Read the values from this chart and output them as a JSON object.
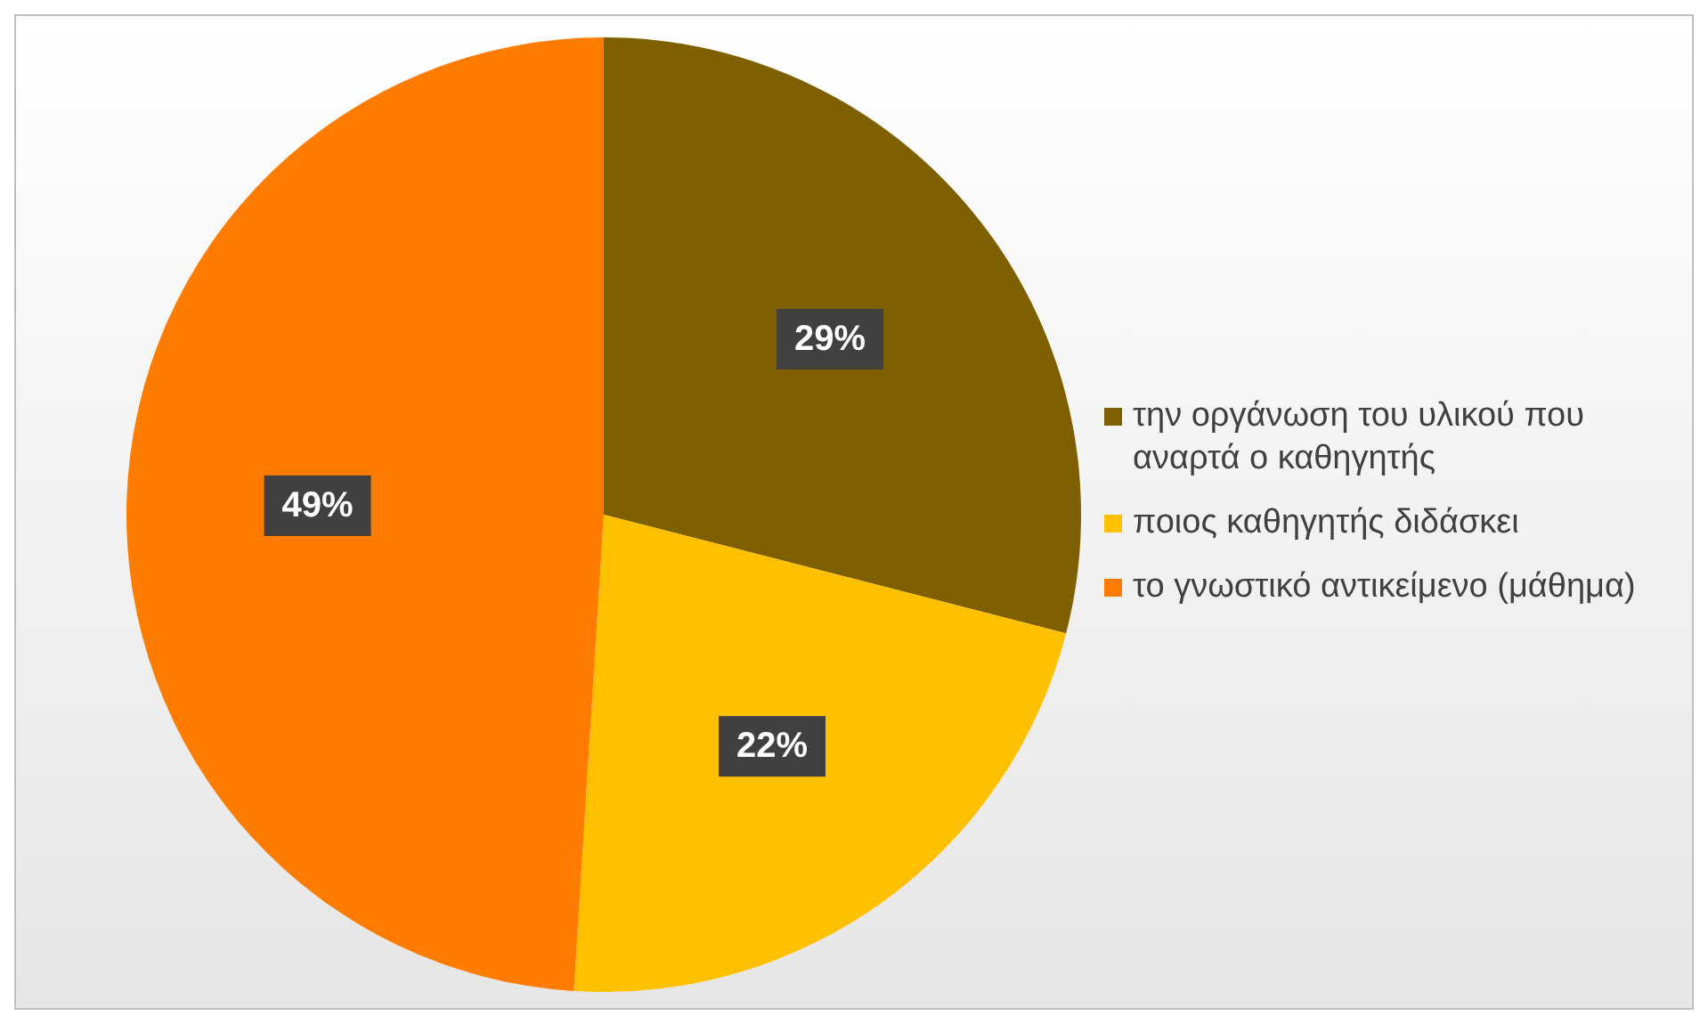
{
  "chart_data": {
    "type": "pie",
    "categories": [
      "την οργάνωση του υλικού που αναρτά ο καθηγητής",
      "ποιος καθηγητής διδάσκει",
      "το γνωστικό αντικείμενο (μάθημα)"
    ],
    "values": [
      29,
      22,
      49
    ],
    "colors": [
      "#7f6000",
      "#ffc000",
      "#ff7c00"
    ],
    "value_labels": [
      "29%",
      "22%",
      "49%"
    ],
    "legend": "right"
  }
}
